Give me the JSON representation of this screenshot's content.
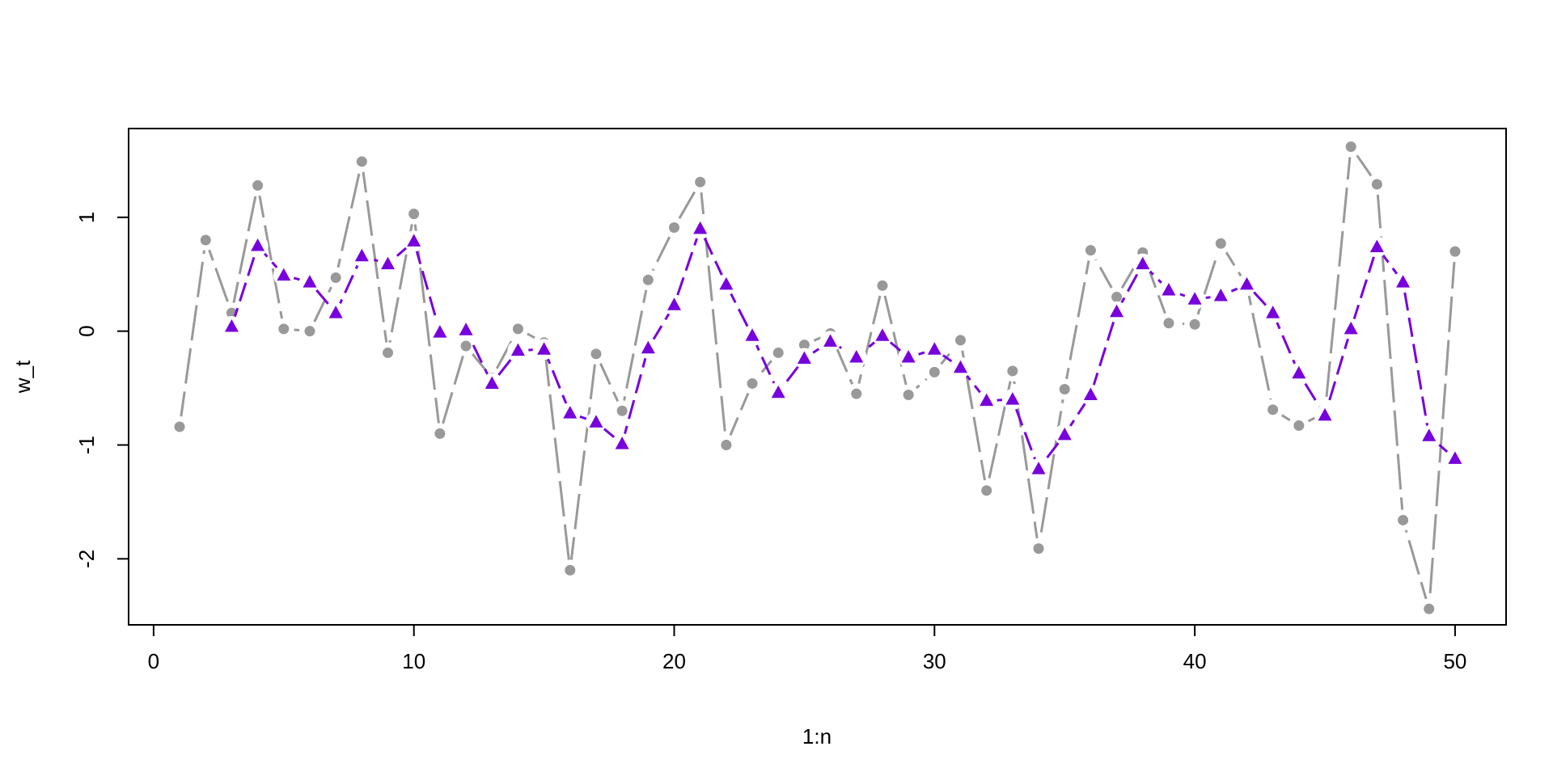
{
  "chart_data": {
    "type": "line",
    "xlabel": "1:n",
    "ylabel": "w_t",
    "xlim": [
      -0.96,
      51.96
    ],
    "ylim": [
      -2.58,
      1.78
    ],
    "x_ticks": [
      0,
      10,
      20,
      30,
      40,
      50
    ],
    "y_ticks": [
      -2,
      -1,
      0,
      1
    ],
    "x_tick_labels": [
      "0",
      "10",
      "20",
      "30",
      "40",
      "50"
    ],
    "y_tick_labels": [
      "-2",
      "-1",
      "0",
      "1"
    ],
    "grid": false,
    "legend": "none",
    "series": [
      {
        "color": "#999999",
        "marker": "circle",
        "line_style": "long-dash",
        "x": [
          1,
          2,
          3,
          4,
          5,
          6,
          7,
          8,
          9,
          10,
          11,
          12,
          13,
          14,
          15,
          16,
          17,
          18,
          19,
          20,
          21,
          22,
          23,
          24,
          25,
          26,
          27,
          28,
          29,
          30,
          31,
          32,
          33,
          34,
          35,
          36,
          37,
          38,
          39,
          40,
          41,
          42,
          43,
          44,
          45,
          46,
          47,
          48,
          49,
          50
        ],
        "values": [
          -0.84,
          0.8,
          0.16,
          1.28,
          0.02,
          0.0,
          0.47,
          1.49,
          -0.19,
          1.03,
          -0.9,
          -0.13,
          -0.41,
          0.02,
          -0.1,
          -2.1,
          -0.2,
          -0.7,
          0.45,
          0.91,
          1.31,
          -1.0,
          -0.46,
          -0.19,
          -0.12,
          -0.02,
          -0.55,
          0.4,
          -0.56,
          -0.36,
          -0.08,
          -1.4,
          -0.35,
          -1.91,
          -0.51,
          0.71,
          0.3,
          0.69,
          0.07,
          0.06,
          0.77,
          0.4,
          -0.69,
          -0.83,
          -0.72,
          1.62,
          1.29,
          -1.66,
          -2.44,
          0.7
        ]
      },
      {
        "color": "#7700dd",
        "marker": "triangle",
        "line_style": "dash",
        "x": [
          3,
          4,
          5,
          6,
          7,
          8,
          9,
          10,
          11,
          12,
          13,
          14,
          15,
          16,
          17,
          18,
          19,
          20,
          21,
          22,
          23,
          24,
          25,
          26,
          27,
          28,
          29,
          30,
          31,
          32,
          33,
          34,
          35,
          36,
          37,
          38,
          39,
          40,
          41,
          42,
          43,
          44,
          45,
          46,
          47,
          48,
          49,
          50
        ],
        "values": [
          0.04,
          0.75,
          0.49,
          0.43,
          0.16,
          0.66,
          0.59,
          0.79,
          -0.01,
          0.01,
          -0.46,
          -0.17,
          -0.16,
          -0.72,
          -0.8,
          -0.99,
          -0.15,
          0.23,
          0.9,
          0.41,
          -0.04,
          -0.54,
          -0.24,
          -0.09,
          -0.23,
          -0.04,
          -0.23,
          -0.16,
          -0.32,
          -0.61,
          -0.6,
          -1.21,
          -0.91,
          -0.56,
          0.17,
          0.59,
          0.36,
          0.28,
          0.31,
          0.41,
          0.16,
          -0.37,
          -0.74,
          0.02,
          0.74,
          0.43,
          -0.92,
          -1.12
        ]
      }
    ]
  }
}
